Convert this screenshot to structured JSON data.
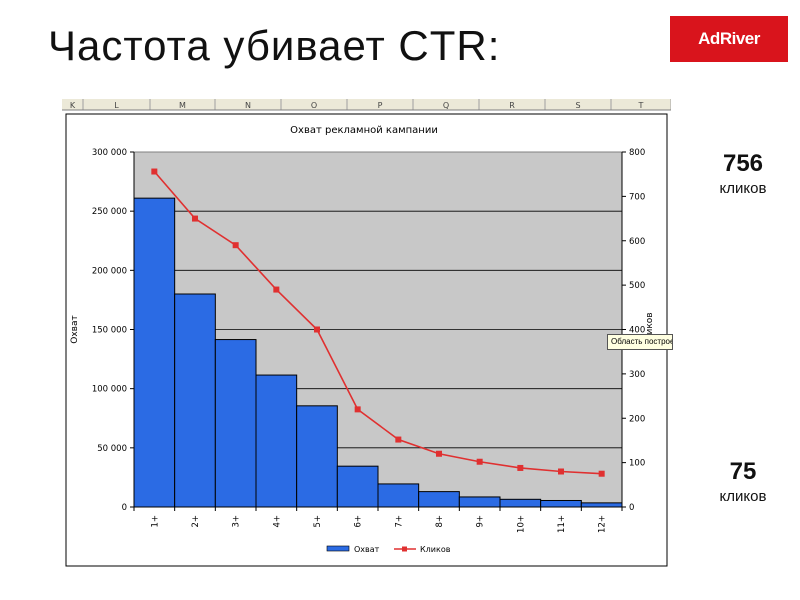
{
  "slide": {
    "title": "Частота убивает CTR:",
    "logo_text": "AdRiver",
    "stat_top": {
      "number": "756",
      "label": "кликов"
    },
    "stat_bottom": {
      "number": "75",
      "label": "кликов"
    }
  },
  "spreadsheet": {
    "columns": [
      "K",
      "L",
      "M",
      "N",
      "O",
      "P",
      "Q",
      "R",
      "S",
      "T"
    ],
    "tooltip": "Область построения диаграммы"
  },
  "chart_data": {
    "type": "bar",
    "title": "Охват рекламной кампании",
    "categories": [
      "1+",
      "2+",
      "3+",
      "4+",
      "5+",
      "6+",
      "7+",
      "8+",
      "9+",
      "10+",
      "11+",
      "12+"
    ],
    "series": [
      {
        "name": "Охват",
        "type": "bar",
        "axis": "left",
        "color": "#2b6be4",
        "values": [
          261000,
          180000,
          141500,
          111500,
          85500,
          34500,
          19500,
          13000,
          8500,
          6500,
          5500,
          3500
        ]
      },
      {
        "name": "Кликов",
        "type": "line",
        "axis": "right",
        "color": "#e03030",
        "values": [
          756,
          650,
          590,
          490,
          400,
          220,
          152,
          120,
          102,
          88,
          80,
          75
        ]
      }
    ],
    "ylabel": "Охват",
    "y2label": "Кликов",
    "ylim": [
      0,
      300000
    ],
    "y2lim": [
      0,
      800
    ],
    "y_ticks": [
      "0",
      "50 000",
      "100 000",
      "150 000",
      "200 000",
      "250 000",
      "300 000"
    ],
    "y2_ticks": [
      "0",
      "100",
      "200",
      "300",
      "400",
      "500",
      "600",
      "700",
      "800"
    ],
    "grid": true,
    "legend": "bottom",
    "colors": {
      "plot_bg": "#c8c8c8",
      "bar": "#2b6be4",
      "line": "#e03030"
    }
  }
}
